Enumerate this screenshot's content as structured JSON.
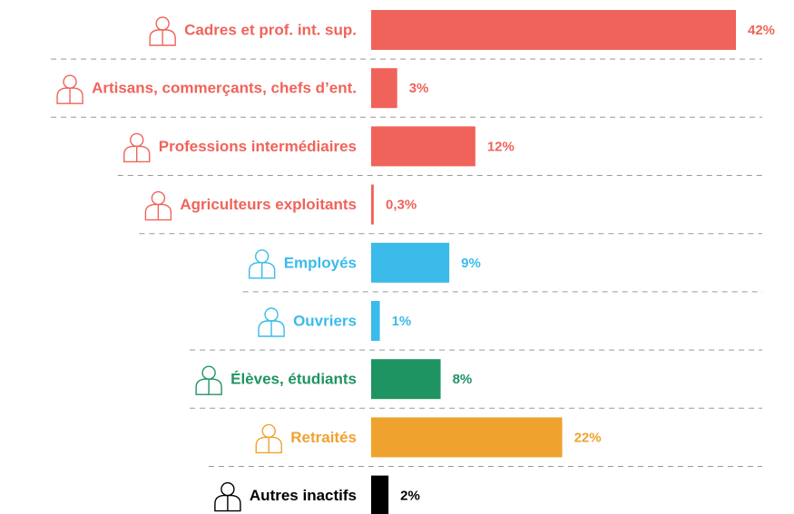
{
  "chart_data": {
    "type": "bar",
    "orientation": "horizontal",
    "categories": [
      "Cadres et prof. int. sup.",
      "Artisans, commerçants, chefs d’ent.",
      "Professions intermédiaires",
      "Agriculteurs exploitants",
      "Employés",
      "Ouvriers",
      "Élèves, étudiants",
      "Retraités",
      "Autres inactifs"
    ],
    "values": [
      42,
      3,
      12,
      0.3,
      9,
      1,
      8,
      22,
      2
    ],
    "value_labels": [
      "42%",
      "3%",
      "12%",
      "0,3%",
      "9%",
      "1%",
      "8%",
      "22%",
      "2%"
    ],
    "colors": [
      "#f0635a",
      "#f0635a",
      "#f0635a",
      "#f0635a",
      "#3bbbea",
      "#3bbbea",
      "#1f9463",
      "#f0a22e",
      "#000000"
    ]
  }
}
